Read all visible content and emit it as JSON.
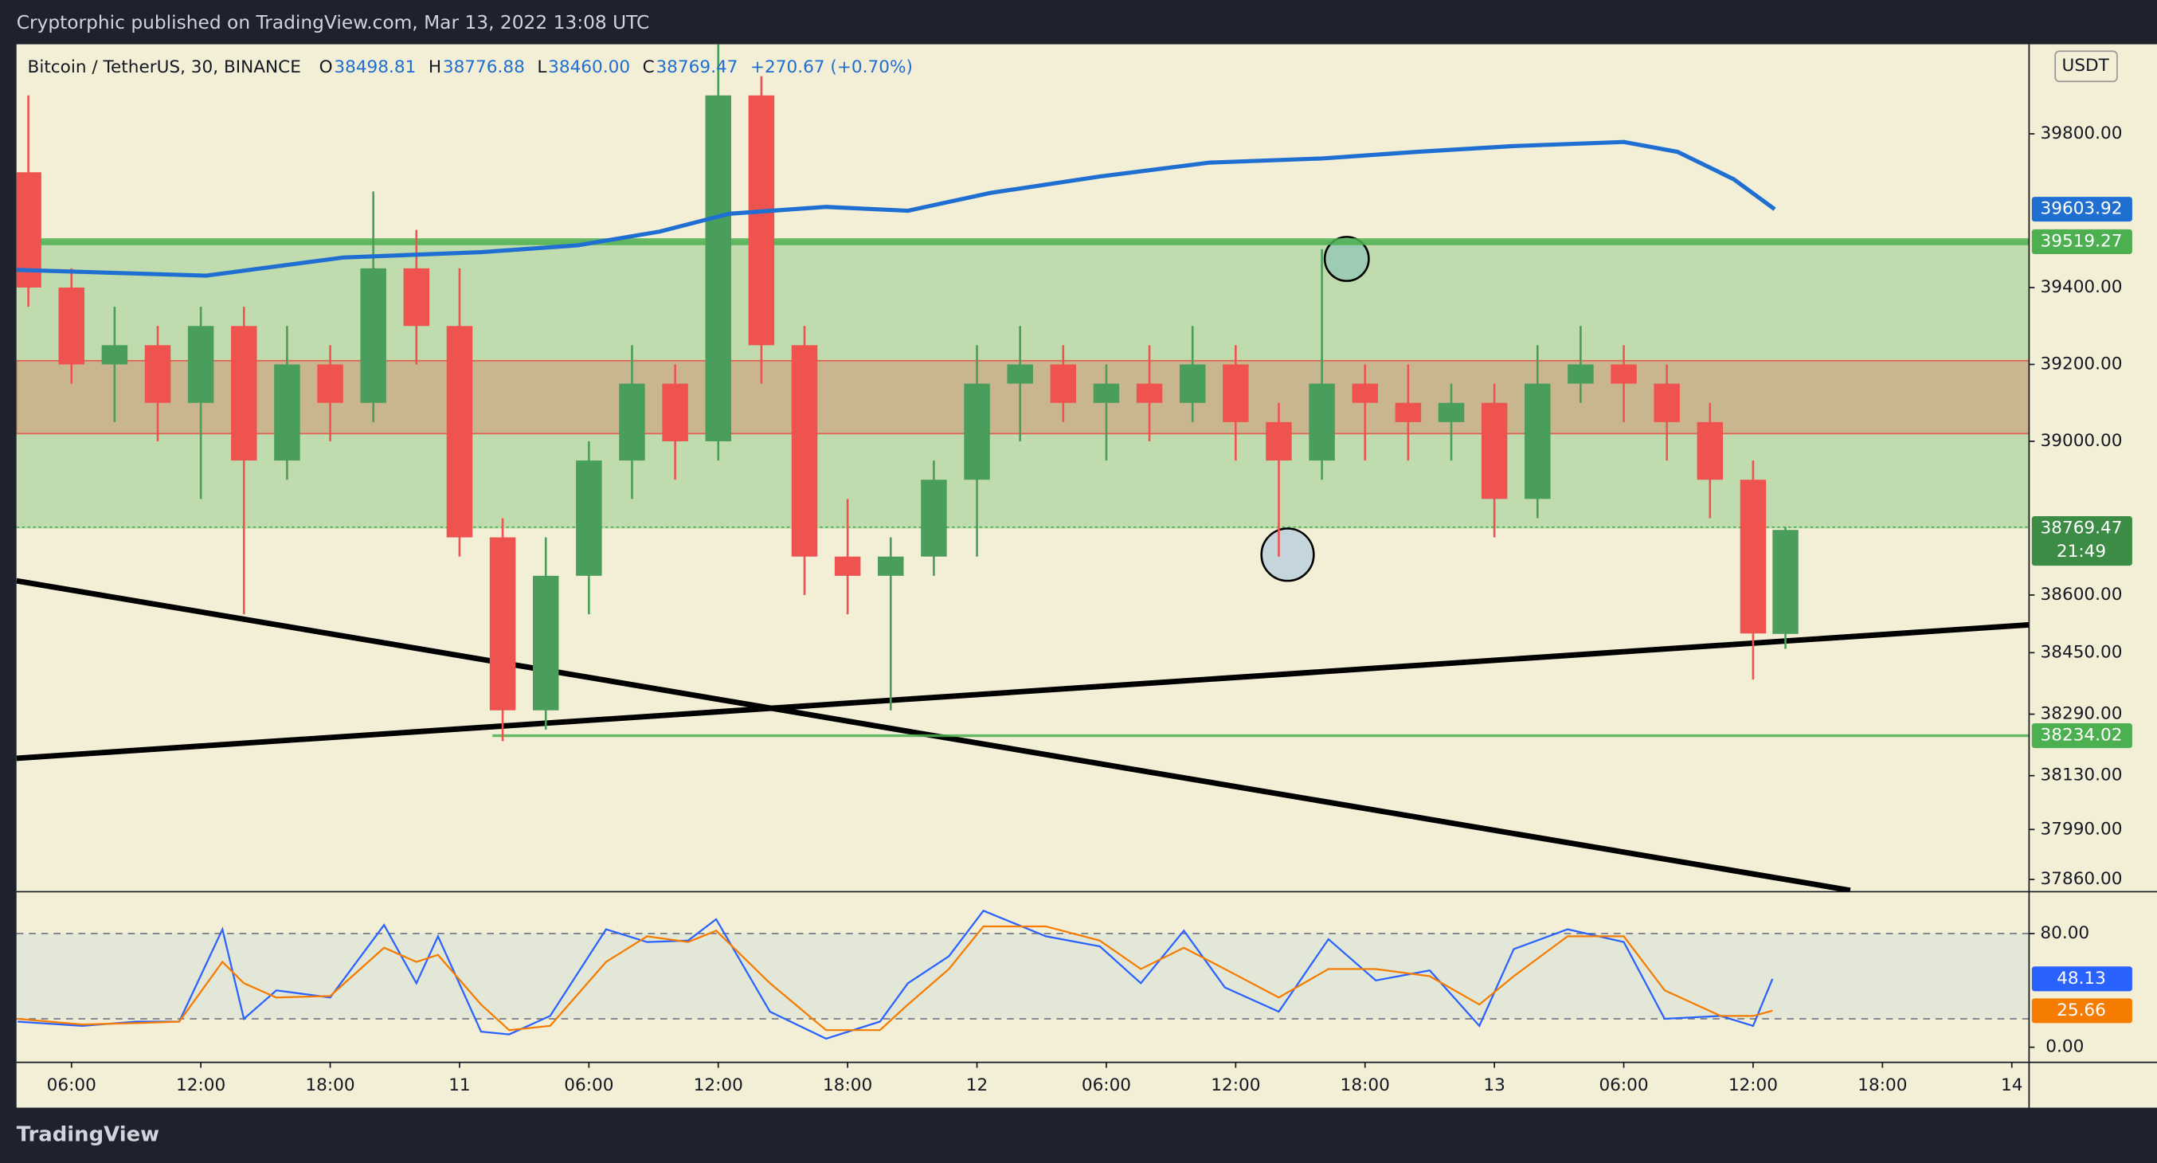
{
  "header": {
    "publisher": "Cryptorphic published on TradingView.com, Mar 13, 2022 13:08 UTC",
    "symbol": "Bitcoin / TetherUS, 30, BINANCE",
    "ohlc": [
      {
        "key": "O",
        "value": "38498.81"
      },
      {
        "key": "H",
        "value": "38776.88"
      },
      {
        "key": "L",
        "value": "38460.00"
      },
      {
        "key": "C",
        "value": "38769.47"
      }
    ],
    "change": "+270.67 (+0.70%)",
    "currency": "USDT"
  },
  "footer": {
    "brand": "TradingView"
  },
  "chart_data": [
    {
      "type": "candlestick",
      "up_color": "#4a9e5c",
      "down_color": "#ef5350",
      "x": [
        4,
        6,
        8,
        10,
        12,
        14,
        16,
        18,
        20,
        22,
        24,
        26,
        28,
        30,
        32,
        34,
        36,
        38,
        40,
        42,
        44,
        46,
        48,
        50,
        52,
        54,
        56,
        58,
        60,
        62,
        64,
        66,
        68,
        70,
        72,
        74,
        76,
        78,
        80,
        82,
        84,
        85.5
      ],
      "open": [
        39700,
        39400,
        39200,
        39250,
        39100,
        39300,
        38950,
        39200,
        39100,
        39450,
        39300,
        38750,
        38300,
        38650,
        38950,
        39150,
        39000,
        39900,
        39250,
        38700,
        38650,
        38700,
        38900,
        39150,
        39200,
        39100,
        39150,
        39100,
        39200,
        39050,
        38950,
        39150,
        39100,
        39050,
        39100,
        38850,
        39150,
        39200,
        39150,
        39050,
        38900,
        38498.81
      ],
      "high": [
        39900,
        39450,
        39350,
        39300,
        39350,
        39350,
        39300,
        39250,
        39650,
        39550,
        39450,
        38800,
        38750,
        39000,
        39250,
        39200,
        40050,
        39950,
        39300,
        38850,
        38750,
        38950,
        39250,
        39300,
        39250,
        39200,
        39250,
        39300,
        39250,
        39100,
        39500,
        39200,
        39200,
        39150,
        39150,
        39250,
        39300,
        39250,
        39200,
        39100,
        38950,
        38776.88
      ],
      "low": [
        39350,
        39150,
        39050,
        39000,
        38850,
        38550,
        38900,
        39000,
        39050,
        39200,
        38700,
        38220,
        38250,
        38550,
        38850,
        38900,
        38950,
        39150,
        38600,
        38550,
        38300,
        38650,
        38700,
        39000,
        39050,
        38950,
        39000,
        39050,
        38950,
        38700,
        38900,
        38950,
        38950,
        38950,
        38750,
        38800,
        39100,
        39050,
        38950,
        38800,
        38380,
        38460
      ],
      "close": [
        39400,
        39200,
        39250,
        39100,
        39300,
        38950,
        39200,
        39100,
        39450,
        39300,
        38750,
        38300,
        38650,
        38950,
        39150,
        39000,
        39900,
        39250,
        38700,
        38650,
        38700,
        38900,
        39150,
        39200,
        39100,
        39150,
        39100,
        39200,
        39050,
        38950,
        39150,
        39100,
        39050,
        39100,
        38850,
        39150,
        39200,
        39150,
        39050,
        38900,
        38500,
        38769.47
      ],
      "countdown": "21:49",
      "line": {
        "color": "#1e6fd1",
        "x": [
          3.45,
          12.25,
          18.6,
          25,
          29.5,
          33.3,
          36.5,
          41,
          44.8,
          48.6,
          53.7,
          58.8,
          64,
          68.4,
          72.9,
          78,
          80.5,
          83.1,
          85
        ],
        "values": [
          39446,
          39431,
          39478,
          39492,
          39510,
          39546,
          39592,
          39610,
          39600,
          39646,
          39689,
          39725,
          39736,
          39753,
          39768,
          39779,
          39753,
          39682,
          39603.92
        ]
      },
      "hlines": [
        {
          "value": 39519.27,
          "color": "#4caf50"
        },
        {
          "value": 38234.02,
          "color": "#4caf50"
        }
      ],
      "xlim": [
        3.45,
        96.8
      ],
      "ylim": [
        37828,
        40033
      ],
      "yticks": [
        {
          "value": 39800,
          "label": "39800.00"
        },
        {
          "value": 39400,
          "label": "39400.00"
        },
        {
          "value": 39200,
          "label": "39200.00"
        },
        {
          "value": 39000,
          "label": "39000.00"
        },
        {
          "value": 38600,
          "label": "38600.00"
        },
        {
          "value": 38450,
          "label": "38450.00"
        },
        {
          "value": 38290,
          "label": "38290.00"
        },
        {
          "value": 38130,
          "label": "38130.00"
        },
        {
          "value": 37990,
          "label": "37990.00"
        },
        {
          "value": 37860,
          "label": "37860.00"
        }
      ]
    },
    {
      "type": "line",
      "x": [
        3.5,
        6.5,
        9,
        11,
        13,
        14,
        15.5,
        18,
        20.5,
        22,
        23,
        25,
        26.3,
        28.2,
        30.8,
        32.7,
        34.6,
        35.9,
        38.4,
        41,
        43.5,
        44.8,
        46.7,
        48.3,
        51.2,
        53.7,
        55.6,
        57.6,
        59.5,
        62,
        64.3,
        66.5,
        69,
        71.3,
        72.9,
        75.4,
        78,
        79.9,
        82.5,
        84,
        84.9
      ],
      "series": [
        {
          "color": "#2962ff",
          "values": [
            18,
            15,
            18,
            18,
            83,
            20,
            40,
            35,
            86,
            45,
            78,
            11,
            9,
            22,
            83,
            74,
            75,
            90,
            25,
            6,
            18,
            45,
            64,
            96,
            78,
            71,
            45,
            82,
            42,
            25,
            76,
            47,
            54,
            15,
            69,
            83,
            74,
            20,
            22,
            15,
            48.13
          ]
        },
        {
          "color": "#f57c00",
          "values": [
            20,
            16,
            17,
            18,
            60,
            45,
            35,
            36,
            70,
            60,
            65,
            30,
            12,
            15,
            60,
            78,
            74,
            82,
            45,
            12,
            12,
            30,
            55,
            85,
            85,
            75,
            55,
            70,
            55,
            35,
            55,
            55,
            50,
            30,
            50,
            78,
            78,
            40,
            22,
            22,
            25.66
          ]
        }
      ],
      "band": [
        20,
        80
      ],
      "xlim": [
        3.45,
        96.8
      ],
      "ylim": [
        -10.6,
        109.4
      ],
      "yticks": [
        {
          "value": 80,
          "label": "80.00"
        },
        {
          "value": 0,
          "label": "0.00"
        }
      ],
      "xticks": [
        {
          "value": 6,
          "label": "06:00"
        },
        {
          "value": 12,
          "label": "12:00"
        },
        {
          "value": 18,
          "label": "18:00"
        },
        {
          "value": 24,
          "label": "11"
        },
        {
          "value": 30,
          "label": "06:00"
        },
        {
          "value": 36,
          "label": "12:00"
        },
        {
          "value": 42,
          "label": "18:00"
        },
        {
          "value": 48,
          "label": "12"
        },
        {
          "value": 54,
          "label": "06:00"
        },
        {
          "value": 60,
          "label": "12:00"
        },
        {
          "value": 66,
          "label": "18:00"
        },
        {
          "value": 72,
          "label": "13"
        },
        {
          "value": 78,
          "label": "06:00"
        },
        {
          "value": 84,
          "label": "12:00"
        },
        {
          "value": 90,
          "label": "18:00"
        },
        {
          "value": 96,
          "label": "14"
        }
      ]
    }
  ]
}
